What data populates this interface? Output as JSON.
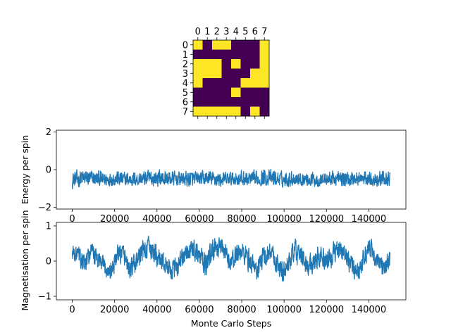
{
  "colors": {
    "grid_off": "#440154",
    "grid_on": "#fde725",
    "line": "#1f77b4"
  },
  "chart_data": [
    {
      "type": "heatmap",
      "title": "",
      "x_ticks": [
        "0",
        "1",
        "2",
        "3",
        "4",
        "5",
        "6",
        "7"
      ],
      "y_ticks": [
        "0",
        "1",
        "2",
        "3",
        "4",
        "5",
        "6",
        "7"
      ],
      "values": [
        [
          1,
          0,
          1,
          1,
          0,
          0,
          0,
          1
        ],
        [
          0,
          0,
          0,
          0,
          0,
          0,
          0,
          1
        ],
        [
          1,
          1,
          1,
          0,
          1,
          0,
          0,
          1
        ],
        [
          1,
          1,
          1,
          0,
          0,
          0,
          1,
          1
        ],
        [
          1,
          0,
          0,
          0,
          0,
          1,
          1,
          1
        ],
        [
          0,
          0,
          0,
          0,
          1,
          0,
          0,
          0
        ],
        [
          0,
          0,
          0,
          0,
          0,
          0,
          0,
          0
        ],
        [
          1,
          1,
          1,
          1,
          1,
          0,
          1,
          0
        ]
      ]
    },
    {
      "type": "line",
      "title": "",
      "xlabel": "",
      "ylabel": "Energy per spin",
      "xlim": [
        -7500,
        157500
      ],
      "ylim": [
        -2.1,
        2.1
      ],
      "x_ticks": [
        0,
        20000,
        40000,
        60000,
        80000,
        100000,
        120000,
        140000
      ],
      "x_tick_labels": [
        "0",
        "20000",
        "40000",
        "60000",
        "80000",
        "100000",
        "120000",
        "140000"
      ],
      "y_ticks": [
        -2,
        0,
        2
      ],
      "y_tick_labels": [
        "−2",
        "0",
        "2"
      ],
      "series": [
        {
          "x": [
            0,
            5000,
            10000,
            15000,
            20000,
            25000,
            30000,
            35000,
            40000,
            45000,
            50000,
            55000,
            60000,
            65000,
            70000,
            75000,
            80000,
            85000,
            90000,
            95000,
            100000,
            105000,
            110000,
            115000,
            120000,
            125000,
            130000,
            135000,
            140000,
            145000,
            150000
          ],
          "y": [
            -0.6,
            -0.55,
            -0.6,
            -0.58,
            -0.6,
            -0.62,
            -0.58,
            -0.6,
            -0.55,
            -0.6,
            -0.58,
            -0.62,
            -0.6,
            -0.57,
            -0.6,
            -0.58,
            -0.62,
            -0.58,
            -0.6,
            -0.56,
            -0.6,
            -0.58,
            -0.6,
            -0.62,
            -0.58,
            -0.6,
            -0.57,
            -0.6,
            -0.58,
            -0.6,
            -0.6
          ],
          "band_low": [
            -1.3,
            -1.1,
            -1.0,
            -1.1,
            -1.0,
            -1.1,
            -1.0,
            -1.0,
            -1.1,
            -1.0,
            -1.0,
            -1.1,
            -1.0,
            -1.0,
            -1.1,
            -1.0,
            -1.0,
            -1.1,
            -1.0,
            -1.0,
            -1.1,
            -1.0,
            -1.0,
            -1.1,
            -1.0,
            -1.0,
            -1.1,
            -1.0,
            -1.0,
            -1.1,
            -1.0
          ],
          "band_high": [
            0.0,
            0.2,
            0.1,
            0.0,
            0.1,
            0.0,
            0.0,
            0.1,
            0.2,
            0.1,
            0.0,
            0.1,
            0.0,
            0.1,
            0.0,
            0.0,
            0.1,
            0.0,
            0.2,
            0.1,
            0.0,
            0.1,
            0.0,
            0.0,
            0.0,
            0.1,
            0.0,
            0.1,
            0.0,
            0.1,
            0.0
          ]
        }
      ]
    },
    {
      "type": "line",
      "title": "",
      "xlabel": "Monte Carlo Steps",
      "ylabel": "Magnetisation per spin",
      "xlim": [
        -7500,
        157500
      ],
      "ylim": [
        -1.1,
        1.1
      ],
      "x_ticks": [
        0,
        20000,
        40000,
        60000,
        80000,
        100000,
        120000,
        140000
      ],
      "x_tick_labels": [
        "0",
        "20000",
        "40000",
        "60000",
        "80000",
        "100000",
        "120000",
        "140000"
      ],
      "y_ticks": [
        -1,
        0,
        1
      ],
      "y_tick_labels": [
        "−1",
        "0",
        "1"
      ],
      "series": [
        {
          "x": [
            0,
            3000,
            6000,
            9000,
            12000,
            15000,
            18000,
            21000,
            24000,
            27000,
            30000,
            33000,
            36000,
            39000,
            42000,
            45000,
            48000,
            51000,
            54000,
            57000,
            60000,
            63000,
            66000,
            69000,
            72000,
            75000,
            78000,
            81000,
            84000,
            87000,
            90000,
            93000,
            96000,
            99000,
            102000,
            105000,
            108000,
            111000,
            114000,
            117000,
            120000,
            123000,
            126000,
            129000,
            132000,
            135000,
            138000,
            141000,
            144000,
            147000,
            150000
          ],
          "y": [
            0.2,
            0.1,
            -0.2,
            0.3,
            0.0,
            -0.2,
            -0.4,
            0.1,
            0.2,
            -0.3,
            -0.1,
            0.3,
            0.4,
            0.2,
            0.0,
            -0.2,
            -0.3,
            0.0,
            0.2,
            0.4,
            0.1,
            -0.2,
            0.3,
            0.5,
            0.2,
            -0.1,
            0.3,
            0.2,
            0.0,
            -0.3,
            0.1,
            0.3,
            0.0,
            -0.4,
            -0.1,
            0.3,
            0.1,
            -0.2,
            0.0,
            0.2,
            -0.1,
            0.2,
            0.4,
            0.2,
            -0.2,
            -0.3,
            0.2,
            0.4,
            -0.1,
            -0.3,
            0.1
          ],
          "band_low": [
            -0.1,
            -0.2,
            -0.6,
            -0.1,
            -0.4,
            -0.6,
            -0.7,
            -0.3,
            -0.2,
            -0.7,
            -0.5,
            -0.2,
            -0.1,
            -0.3,
            -0.5,
            -0.6,
            -0.7,
            -0.4,
            -0.3,
            -0.1,
            -0.4,
            -0.6,
            -0.2,
            0.0,
            -0.3,
            -0.5,
            -0.3,
            -0.3,
            -0.5,
            -0.7,
            -0.4,
            -0.2,
            -0.5,
            -0.8,
            -0.5,
            -0.2,
            -0.4,
            -0.6,
            -0.5,
            -0.3,
            -0.6,
            -0.3,
            -0.1,
            -0.3,
            -0.6,
            -0.7,
            -0.3,
            -0.1,
            -0.5,
            -0.7,
            -0.4
          ],
          "band_high": [
            0.6,
            0.5,
            0.3,
            0.65,
            0.4,
            0.2,
            0.1,
            0.5,
            0.6,
            0.2,
            0.3,
            0.65,
            0.75,
            0.6,
            0.4,
            0.2,
            0.1,
            0.4,
            0.6,
            0.75,
            0.5,
            0.3,
            0.7,
            0.75,
            0.6,
            0.3,
            0.65,
            0.6,
            0.4,
            0.1,
            0.5,
            0.7,
            0.4,
            0.1,
            0.3,
            0.7,
            0.5,
            0.2,
            0.4,
            0.6,
            0.3,
            0.6,
            0.75,
            0.6,
            0.2,
            0.1,
            0.6,
            0.7,
            0.3,
            0.1,
            0.5
          ]
        }
      ]
    }
  ]
}
